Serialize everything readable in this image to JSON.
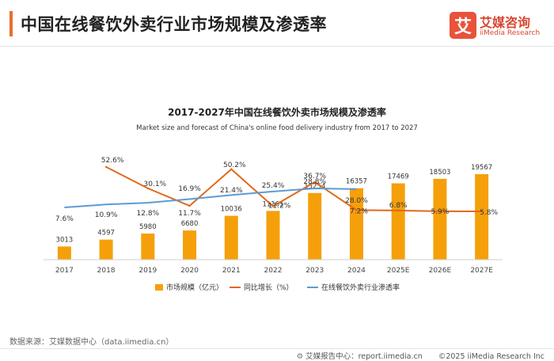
{
  "page": {
    "title": "中国在线餐饮外卖行业市场规模及渗透率",
    "logo_mark": "艾",
    "logo_cn": "艾媒咨询",
    "logo_en": "iiMedia Research",
    "source": "数据来源：艾媒数据中心（data.iimedia.cn）",
    "footer_report": "艾媒报告中心：report.iimedia.cn",
    "footer_copyright": "©2025  iiMedia Research  Inc",
    "colors": {
      "accent": "#e8702a",
      "logo": "#e8533a"
    }
  },
  "chart_data": {
    "type": "bar",
    "title": "2017-2027年中国在线餐饮外卖市场规模及渗透率",
    "subtitle": "Market size and forecast of China's online food delivery industry from 2017 to 2027",
    "categories": [
      "2017",
      "2018",
      "2019",
      "2020",
      "2021",
      "2022",
      "2023",
      "2024",
      "2025E",
      "2026E",
      "2027E"
    ],
    "series": [
      {
        "name": "市场规模（亿元）",
        "kind": "bar",
        "color": "#f5a00a",
        "values": [
          3013,
          4597,
          5980,
          6680,
          10036,
          11161,
          15254,
          16357,
          17469,
          18503,
          19567
        ],
        "labels": [
          "3013",
          "4597",
          "5980",
          "6680",
          "10036",
          "11161",
          "15254",
          "16357",
          "17469",
          "18503",
          "19567"
        ]
      },
      {
        "name": "同比增长（%）",
        "kind": "line",
        "color": "#e06a1b",
        "values": [
          null,
          52.6,
          30.1,
          11.7,
          50.2,
          11.2,
          36.7,
          7.2,
          6.8,
          5.9,
          5.8
        ],
        "labels": [
          null,
          "52.6%",
          "30.1%",
          "11.7%",
          "50.2%",
          "11.2%",
          "36.7%",
          "7.2%",
          "6.8%",
          "5.9%",
          "5.8%"
        ]
      },
      {
        "name": "在线餐饮外卖行业渗透率",
        "kind": "line",
        "color": "#5b9bd5",
        "values": [
          7.6,
          10.9,
          12.8,
          16.9,
          21.4,
          25.4,
          28.8,
          28.0,
          null,
          null,
          null
        ],
        "labels": [
          "7.6%",
          "10.9%",
          "12.8%",
          "16.9%",
          "21.4%",
          "25.4%",
          "28.8%",
          "28.0%",
          null,
          null,
          null
        ]
      }
    ],
    "legend": "bottom",
    "grid": false
  }
}
